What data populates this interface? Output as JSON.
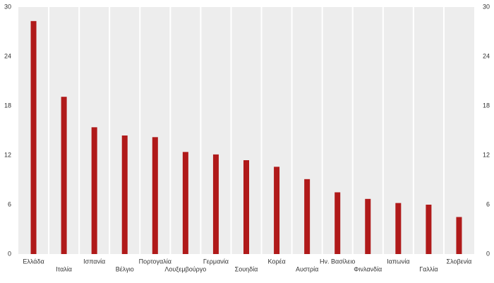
{
  "chart_data": {
    "type": "bar",
    "categories": [
      "Ελλάδα",
      "Ιταλία",
      "Ισπανία",
      "Βέλγιο",
      "Πορτογαλία",
      "Λουξεμβούργο",
      "Γερμανία",
      "Σουηδία",
      "Κορέα",
      "Αυστρία",
      "Ην. Βασίλειο",
      "Φινλανδία",
      "Ιαπωνία",
      "Γαλλία",
      "Σλοβενία"
    ],
    "values": [
      28.3,
      19.1,
      15.4,
      14.4,
      14.2,
      12.4,
      12.1,
      11.4,
      10.6,
      9.1,
      7.5,
      6.7,
      6.2,
      6.0,
      4.5
    ],
    "color": "#b01a1a",
    "ylim": [
      0,
      30
    ],
    "yticks": [
      0,
      6,
      12,
      18,
      24,
      30
    ],
    "y2lim": [
      0,
      30
    ],
    "y2ticks": [
      0,
      6,
      12,
      18,
      24,
      30
    ]
  }
}
